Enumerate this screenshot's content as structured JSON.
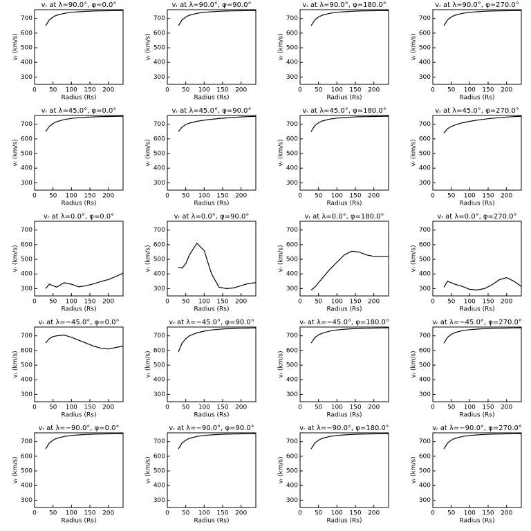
{
  "chart_data": [
    {
      "type": "line",
      "title": "vᵣ at λ=90.0°, φ=0.0°",
      "xlabel": "Radius (Rs)",
      "ylabel": "vᵣ (km/s)",
      "color": "#000000",
      "x": [
        30,
        40,
        50,
        60,
        80,
        100,
        120,
        140,
        160,
        180,
        200,
        220,
        240
      ],
      "values": [
        650,
        690,
        710,
        722,
        735,
        742,
        746,
        749,
        751,
        752,
        753,
        754,
        755
      ],
      "xlim": [
        0,
        240
      ],
      "xticks": [
        0,
        50,
        100,
        150,
        200
      ],
      "ylim": [
        250,
        760
      ],
      "yticks": [
        300,
        400,
        500,
        600,
        700
      ]
    },
    {
      "type": "line",
      "title": "vᵣ at λ=90.0°, φ=90.0°",
      "xlabel": "Radius (Rs)",
      "ylabel": "vᵣ (km/s)",
      "color": "#000000",
      "x": [
        30,
        40,
        50,
        60,
        80,
        100,
        120,
        140,
        160,
        180,
        200,
        220,
        240
      ],
      "values": [
        650,
        690,
        710,
        722,
        735,
        742,
        746,
        749,
        751,
        752,
        753,
        754,
        755
      ],
      "xlim": [
        0,
        240
      ],
      "xticks": [
        0,
        50,
        100,
        150,
        200
      ],
      "ylim": [
        250,
        760
      ],
      "yticks": [
        300,
        400,
        500,
        600,
        700
      ]
    },
    {
      "type": "line",
      "title": "vᵣ at λ=90.0°, φ=180.0°",
      "xlabel": "Radius (Rs)",
      "ylabel": "vᵣ (km/s)",
      "color": "#000000",
      "x": [
        30,
        40,
        50,
        60,
        80,
        100,
        120,
        140,
        160,
        180,
        200,
        220,
        240
      ],
      "values": [
        650,
        690,
        710,
        722,
        735,
        742,
        746,
        749,
        751,
        752,
        753,
        754,
        755
      ],
      "xlim": [
        0,
        240
      ],
      "xticks": [
        0,
        50,
        100,
        150,
        200
      ],
      "ylim": [
        250,
        760
      ],
      "yticks": [
        300,
        400,
        500,
        600,
        700
      ]
    },
    {
      "type": "line",
      "title": "vᵣ at λ=90.0°, φ=270.0°",
      "xlabel": "Radius (Rs)",
      "ylabel": "vᵣ (km/s)",
      "color": "#000000",
      "x": [
        30,
        40,
        50,
        60,
        80,
        100,
        120,
        140,
        160,
        180,
        200,
        220,
        240
      ],
      "values": [
        650,
        690,
        710,
        722,
        735,
        742,
        746,
        749,
        751,
        752,
        753,
        754,
        755
      ],
      "xlim": [
        0,
        240
      ],
      "xticks": [
        0,
        50,
        100,
        150,
        200
      ],
      "ylim": [
        250,
        760
      ],
      "yticks": [
        300,
        400,
        500,
        600,
        700
      ]
    },
    {
      "type": "line",
      "title": "vᵣ at λ=45.0°, φ=0.0°",
      "xlabel": "Radius (Rs)",
      "ylabel": "vᵣ (km/s)",
      "color": "#000000",
      "x": [
        30,
        40,
        50,
        60,
        80,
        100,
        120,
        140,
        160,
        180,
        200,
        220,
        240
      ],
      "values": [
        650,
        685,
        705,
        718,
        732,
        740,
        745,
        748,
        750,
        752,
        753,
        754,
        755
      ],
      "xlim": [
        0,
        240
      ],
      "xticks": [
        0,
        50,
        100,
        150,
        200
      ],
      "ylim": [
        250,
        760
      ],
      "yticks": [
        300,
        400,
        500,
        600,
        700
      ]
    },
    {
      "type": "line",
      "title": "vᵣ at λ=45.0°, φ=90.0°",
      "xlabel": "Radius (Rs)",
      "ylabel": "vᵣ (km/s)",
      "color": "#000000",
      "x": [
        30,
        40,
        50,
        60,
        80,
        100,
        120,
        140,
        160,
        180,
        200,
        220,
        240
      ],
      "values": [
        650,
        680,
        698,
        708,
        720,
        728,
        734,
        739,
        743,
        747,
        750,
        752,
        754
      ],
      "xlim": [
        0,
        240
      ],
      "xticks": [
        0,
        50,
        100,
        150,
        200
      ],
      "ylim": [
        250,
        760
      ],
      "yticks": [
        300,
        400,
        500,
        600,
        700
      ]
    },
    {
      "type": "line",
      "title": "vᵣ at λ=45.0°, φ=180.0°",
      "xlabel": "Radius (Rs)",
      "ylabel": "vᵣ (km/s)",
      "color": "#000000",
      "x": [
        30,
        40,
        50,
        60,
        80,
        100,
        120,
        140,
        160,
        180,
        200,
        220,
        240
      ],
      "values": [
        650,
        690,
        710,
        722,
        735,
        742,
        746,
        749,
        751,
        752,
        753,
        754,
        755
      ],
      "xlim": [
        0,
        240
      ],
      "xticks": [
        0,
        50,
        100,
        150,
        200
      ],
      "ylim": [
        250,
        760
      ],
      "yticks": [
        300,
        400,
        500,
        600,
        700
      ]
    },
    {
      "type": "line",
      "title": "vᵣ at λ=45.0°, φ=270.0°",
      "xlabel": "Radius (Rs)",
      "ylabel": "vᵣ (km/s)",
      "color": "#000000",
      "x": [
        30,
        40,
        50,
        60,
        80,
        100,
        120,
        140,
        160,
        180,
        200,
        220,
        240
      ],
      "values": [
        640,
        670,
        685,
        695,
        710,
        720,
        728,
        735,
        740,
        745,
        749,
        752,
        755
      ],
      "xlim": [
        0,
        240
      ],
      "xticks": [
        0,
        50,
        100,
        150,
        200
      ],
      "ylim": [
        250,
        760
      ],
      "yticks": [
        300,
        400,
        500,
        600,
        700
      ]
    },
    {
      "type": "line",
      "title": "vᵣ at λ=0.0°, φ=0.0°",
      "xlabel": "Radius (Rs)",
      "ylabel": "vᵣ (km/s)",
      "color": "#000000",
      "x": [
        30,
        40,
        50,
        60,
        80,
        100,
        120,
        140,
        160,
        180,
        200,
        220,
        240
      ],
      "values": [
        300,
        330,
        320,
        310,
        340,
        330,
        312,
        320,
        332,
        348,
        362,
        382,
        405
      ],
      "xlim": [
        0,
        240
      ],
      "xticks": [
        0,
        50,
        100,
        150,
        200
      ],
      "ylim": [
        250,
        760
      ],
      "yticks": [
        300,
        400,
        500,
        600,
        700
      ]
    },
    {
      "type": "line",
      "title": "vᵣ at λ=0.0°, φ=90.0°",
      "xlabel": "Radius (Rs)",
      "ylabel": "vᵣ (km/s)",
      "color": "#000000",
      "x": [
        30,
        40,
        50,
        60,
        80,
        100,
        120,
        140,
        160,
        180,
        200,
        220,
        240
      ],
      "values": [
        445,
        440,
        470,
        530,
        610,
        560,
        400,
        310,
        300,
        305,
        320,
        335,
        340
      ],
      "xlim": [
        0,
        240
      ],
      "xticks": [
        0,
        50,
        100,
        150,
        200
      ],
      "ylim": [
        250,
        760
      ],
      "yticks": [
        300,
        400,
        500,
        600,
        700
      ]
    },
    {
      "type": "line",
      "title": "vᵣ at λ=0.0°, φ=180.0°",
      "xlabel": "Radius (Rs)",
      "ylabel": "vᵣ (km/s)",
      "color": "#000000",
      "x": [
        30,
        40,
        50,
        60,
        80,
        100,
        120,
        140,
        160,
        180,
        200,
        220,
        240
      ],
      "values": [
        290,
        310,
        340,
        370,
        430,
        480,
        530,
        555,
        550,
        530,
        520,
        520,
        520
      ],
      "xlim": [
        0,
        240
      ],
      "xticks": [
        0,
        50,
        100,
        150,
        200
      ],
      "ylim": [
        250,
        760
      ],
      "yticks": [
        300,
        400,
        500,
        600,
        700
      ]
    },
    {
      "type": "line",
      "title": "vᵣ at λ=0.0°, φ=270.0°",
      "xlabel": "Radius (Rs)",
      "ylabel": "vᵣ (km/s)",
      "color": "#000000",
      "x": [
        30,
        40,
        50,
        60,
        80,
        100,
        120,
        140,
        160,
        180,
        200,
        220,
        240
      ],
      "values": [
        310,
        350,
        340,
        330,
        315,
        295,
        290,
        300,
        325,
        360,
        375,
        350,
        315
      ],
      "xlim": [
        0,
        240
      ],
      "xticks": [
        0,
        50,
        100,
        150,
        200
      ],
      "ylim": [
        250,
        760
      ],
      "yticks": [
        300,
        400,
        500,
        600,
        700
      ]
    },
    {
      "type": "line",
      "title": "vᵣ at λ=−45.0°, φ=0.0°",
      "xlabel": "Radius (Rs)",
      "ylabel": "vᵣ (km/s)",
      "color": "#000000",
      "x": [
        30,
        40,
        50,
        60,
        80,
        100,
        120,
        140,
        160,
        180,
        200,
        220,
        240
      ],
      "values": [
        650,
        680,
        695,
        700,
        705,
        690,
        670,
        650,
        630,
        615,
        610,
        620,
        630
      ],
      "xlim": [
        0,
        240
      ],
      "xticks": [
        0,
        50,
        100,
        150,
        200
      ],
      "ylim": [
        250,
        760
      ],
      "yticks": [
        300,
        400,
        500,
        600,
        700
      ]
    },
    {
      "type": "line",
      "title": "vᵣ at λ=−45.0°, φ=90.0°",
      "xlabel": "Radius (Rs)",
      "ylabel": "vᵣ (km/s)",
      "color": "#000000",
      "x": [
        30,
        40,
        50,
        60,
        80,
        100,
        120,
        140,
        160,
        180,
        200,
        220,
        240
      ],
      "values": [
        590,
        650,
        680,
        700,
        720,
        732,
        740,
        745,
        748,
        750,
        752,
        753,
        754
      ],
      "xlim": [
        0,
        240
      ],
      "xticks": [
        0,
        50,
        100,
        150,
        200
      ],
      "ylim": [
        250,
        760
      ],
      "yticks": [
        300,
        400,
        500,
        600,
        700
      ]
    },
    {
      "type": "line",
      "title": "vᵣ at λ=−45.0°, φ=180.0°",
      "xlabel": "Radius (Rs)",
      "ylabel": "vᵣ (km/s)",
      "color": "#000000",
      "x": [
        30,
        40,
        50,
        60,
        80,
        100,
        120,
        140,
        160,
        180,
        200,
        220,
        240
      ],
      "values": [
        650,
        688,
        706,
        718,
        732,
        740,
        745,
        748,
        750,
        752,
        753,
        754,
        755
      ],
      "xlim": [
        0,
        240
      ],
      "xticks": [
        0,
        50,
        100,
        150,
        200
      ],
      "ylim": [
        250,
        760
      ],
      "yticks": [
        300,
        400,
        500,
        600,
        700
      ]
    },
    {
      "type": "line",
      "title": "vᵣ at λ=−45.0°, φ=270.0°",
      "xlabel": "Radius (Rs)",
      "ylabel": "vᵣ (km/s)",
      "color": "#000000",
      "x": [
        30,
        40,
        50,
        60,
        80,
        100,
        120,
        140,
        160,
        180,
        200,
        220,
        240
      ],
      "values": [
        650,
        690,
        710,
        722,
        735,
        742,
        746,
        749,
        751,
        752,
        753,
        754,
        755
      ],
      "xlim": [
        0,
        240
      ],
      "xticks": [
        0,
        50,
        100,
        150,
        200
      ],
      "ylim": [
        250,
        760
      ],
      "yticks": [
        300,
        400,
        500,
        600,
        700
      ]
    },
    {
      "type": "line",
      "title": "vᵣ at λ=−90.0°, φ=0.0°",
      "xlabel": "Radius (Rs)",
      "ylabel": "vᵣ (km/s)",
      "color": "#000000",
      "x": [
        30,
        40,
        50,
        60,
        80,
        100,
        120,
        140,
        160,
        180,
        200,
        220,
        240
      ],
      "values": [
        650,
        690,
        710,
        722,
        735,
        742,
        746,
        749,
        751,
        752,
        753,
        754,
        755
      ],
      "xlim": [
        0,
        240
      ],
      "xticks": [
        0,
        50,
        100,
        150,
        200
      ],
      "ylim": [
        250,
        760
      ],
      "yticks": [
        300,
        400,
        500,
        600,
        700
      ]
    },
    {
      "type": "line",
      "title": "vᵣ at λ=−90.0°, φ=90.0°",
      "xlabel": "Radius (Rs)",
      "ylabel": "vᵣ (km/s)",
      "color": "#000000",
      "x": [
        30,
        40,
        50,
        60,
        80,
        100,
        120,
        140,
        160,
        180,
        200,
        220,
        240
      ],
      "values": [
        650,
        690,
        710,
        722,
        735,
        742,
        746,
        749,
        751,
        752,
        753,
        754,
        755
      ],
      "xlim": [
        0,
        240
      ],
      "xticks": [
        0,
        50,
        100,
        150,
        200
      ],
      "ylim": [
        250,
        760
      ],
      "yticks": [
        300,
        400,
        500,
        600,
        700
      ]
    },
    {
      "type": "line",
      "title": "vᵣ at λ=−90.0°, φ=180.0°",
      "xlabel": "Radius (Rs)",
      "ylabel": "vᵣ (km/s)",
      "color": "#000000",
      "x": [
        30,
        40,
        50,
        60,
        80,
        100,
        120,
        140,
        160,
        180,
        200,
        220,
        240
      ],
      "values": [
        650,
        690,
        710,
        722,
        735,
        742,
        746,
        749,
        751,
        752,
        753,
        754,
        755
      ],
      "xlim": [
        0,
        240
      ],
      "xticks": [
        0,
        50,
        100,
        150,
        200
      ],
      "ylim": [
        250,
        760
      ],
      "yticks": [
        300,
        400,
        500,
        600,
        700
      ]
    },
    {
      "type": "line",
      "title": "vᵣ at λ=−90.0°, φ=270.0°",
      "xlabel": "Radius (Rs)",
      "ylabel": "vᵣ (km/s)",
      "color": "#000000",
      "x": [
        30,
        40,
        50,
        60,
        80,
        100,
        120,
        140,
        160,
        180,
        200,
        220,
        240
      ],
      "values": [
        650,
        690,
        710,
        722,
        735,
        742,
        746,
        749,
        751,
        752,
        753,
        754,
        755
      ],
      "xlim": [
        0,
        240
      ],
      "xticks": [
        0,
        50,
        100,
        150,
        200
      ],
      "ylim": [
        250,
        760
      ],
      "yticks": [
        300,
        400,
        500,
        600,
        700
      ]
    }
  ]
}
